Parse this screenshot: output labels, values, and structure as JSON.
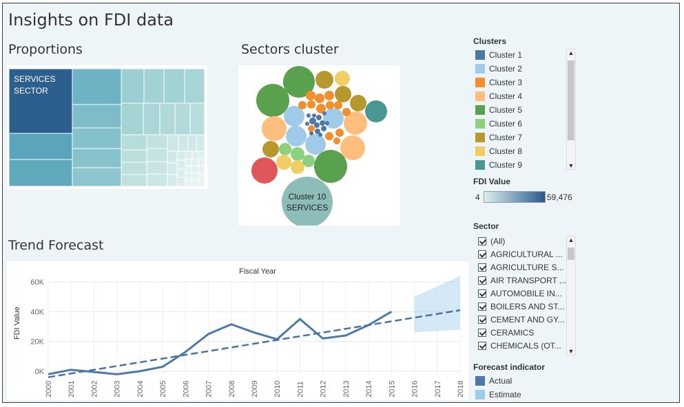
{
  "dashboard": {
    "title": "Insights on FDI data"
  },
  "sections": {
    "proportions": "Proportions",
    "sectors_cluster": "Sectors cluster",
    "trend_forecast": "Trend Forecast"
  },
  "treemap": {
    "label_line1": "SERVICES",
    "label_line2": "SECTOR"
  },
  "bubble": {
    "label_line1": "Cluster 10",
    "label_line2": "SERVICES"
  },
  "clusters_legend": {
    "title": "Clusters",
    "items": [
      {
        "label": "Cluster 1",
        "color": "#4e79a7"
      },
      {
        "label": "Cluster 2",
        "color": "#a0cbe8"
      },
      {
        "label": "Cluster 3",
        "color": "#f28e2b"
      },
      {
        "label": "Cluster 4",
        "color": "#ffbe7d"
      },
      {
        "label": "Cluster 5",
        "color": "#59a14f"
      },
      {
        "label": "Cluster 6",
        "color": "#8cd17d"
      },
      {
        "label": "Cluster 7",
        "color": "#b6992d"
      },
      {
        "label": "Cluster 8",
        "color": "#f1ce63"
      },
      {
        "label": "Cluster 9",
        "color": "#499894"
      }
    ]
  },
  "fdi_value_legend": {
    "title": "FDI Value",
    "min": "4",
    "max": "59,476",
    "color_low": "#dbf0ef",
    "color_high": "#2a5a8c"
  },
  "sector_filter": {
    "title": "Sector",
    "items": [
      "(All)",
      "AGRICULTURAL ...",
      "AGRICULTURE S...",
      "AIR TRANSPORT ...",
      "AUTOMOBILE IN...",
      "BOILERS AND ST...",
      "CEMENT AND GY...",
      "CERAMICS",
      "CHEMICALS (OT..."
    ]
  },
  "forecast_legend": {
    "title": "Forecast indicator",
    "items": [
      {
        "label": "Actual",
        "color": "#4e79a7"
      },
      {
        "label": "Estimate",
        "color": "#a0cbe8"
      }
    ]
  },
  "chart_data": {
    "type": "line",
    "title": "Fiscal Year",
    "ylabel": "FDI Value",
    "xlabel": "",
    "ylim": [
      0,
      60000
    ],
    "yticks": [
      0,
      20000,
      40000,
      60000
    ],
    "ytick_labels": [
      "0K",
      "20K",
      "40K",
      "60K"
    ],
    "categories": [
      "2000",
      "2001",
      "2002",
      "2003",
      "2004",
      "2005",
      "2006",
      "2007",
      "2008",
      "2009",
      "2010",
      "2011",
      "2012",
      "2013",
      "2014",
      "2015",
      "2016",
      "2017",
      "2018"
    ],
    "series": [
      {
        "name": "Actual",
        "values": [
          -2000,
          1000,
          -500,
          -2000,
          0,
          3000,
          13000,
          25000,
          31500,
          26000,
          21500,
          35000,
          22000,
          24000,
          31000,
          40000,
          null,
          null,
          null
        ]
      },
      {
        "values": [
          -4000,
          -1500,
          1000,
          3500,
          6000,
          8500,
          11000,
          13500,
          16000,
          18500,
          21000,
          23500,
          26000,
          28500,
          31000,
          33500,
          36000,
          38500,
          41000
        ]
      }
    ],
    "forecast_band": {
      "x": [
        "2016",
        "2018"
      ],
      "lower": [
        26000,
        28000
      ],
      "upper": [
        50000,
        64000
      ]
    }
  }
}
